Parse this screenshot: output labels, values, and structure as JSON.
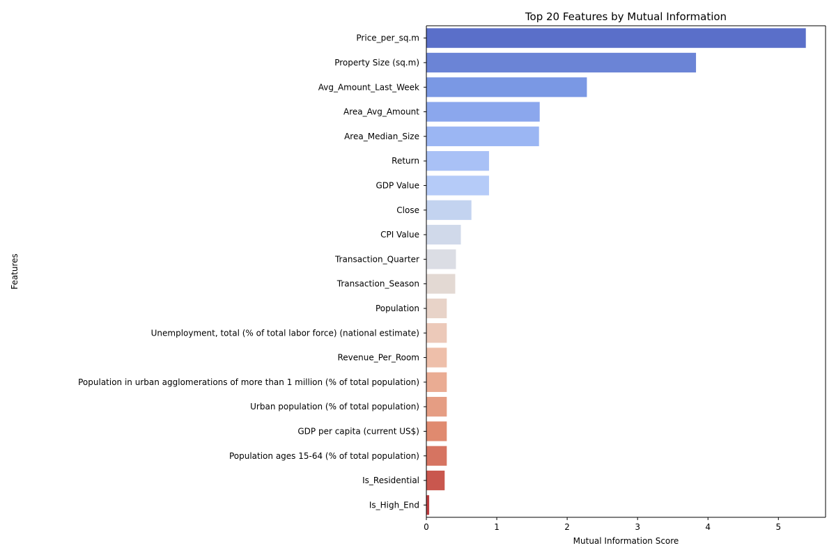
{
  "chart_data": {
    "type": "bar",
    "orientation": "horizontal",
    "title": "Top 20 Features by Mutual Information",
    "xlabel": "Mutual Information Score",
    "ylabel": "Features",
    "xlim": [
      0,
      5.67
    ],
    "xticks": [
      0,
      1,
      2,
      3,
      4,
      5
    ],
    "xtick_labels": [
      "0",
      "1",
      "2",
      "3",
      "4",
      "5"
    ],
    "grid": false,
    "legend": "none",
    "categories": [
      "Price_per_sq.m",
      "Property Size (sq.m)",
      "Avg_Amount_Last_Week",
      "Area_Avg_Amount",
      "Area_Median_Size",
      "Return",
      "GDP Value",
      "Close",
      "CPI Value",
      "Transaction_Quarter",
      "Transaction_Season",
      "Population",
      "Unemployment, total (% of total labor force) (national estimate)",
      "Revenue_Per_Room",
      "Population in urban agglomerations of more than 1 million (% of total population)",
      "Urban population (% of total population)",
      "GDP per capita (current US$)",
      "Population ages 15-64 (% of total population)",
      "Is_Residential",
      "Is_High_End"
    ],
    "values": [
      5.39,
      3.83,
      2.28,
      1.61,
      1.6,
      0.89,
      0.89,
      0.64,
      0.49,
      0.42,
      0.41,
      0.29,
      0.29,
      0.29,
      0.29,
      0.29,
      0.29,
      0.29,
      0.26,
      0.04
    ],
    "colors": [
      "#5a6fc9",
      "#6b84d6",
      "#7a98e4",
      "#8ba7ed",
      "#9bb6f3",
      "#a9c1f6",
      "#b5cbf8",
      "#c3d3f0",
      "#d0d9ea",
      "#dbdde4",
      "#e3d9d3",
      "#e8d3c8",
      "#ecc9b9",
      "#eebfaa",
      "#eaac93",
      "#e59d83",
      "#e08a6f",
      "#d67461",
      "#c9574e",
      "#bb3d40"
    ]
  }
}
